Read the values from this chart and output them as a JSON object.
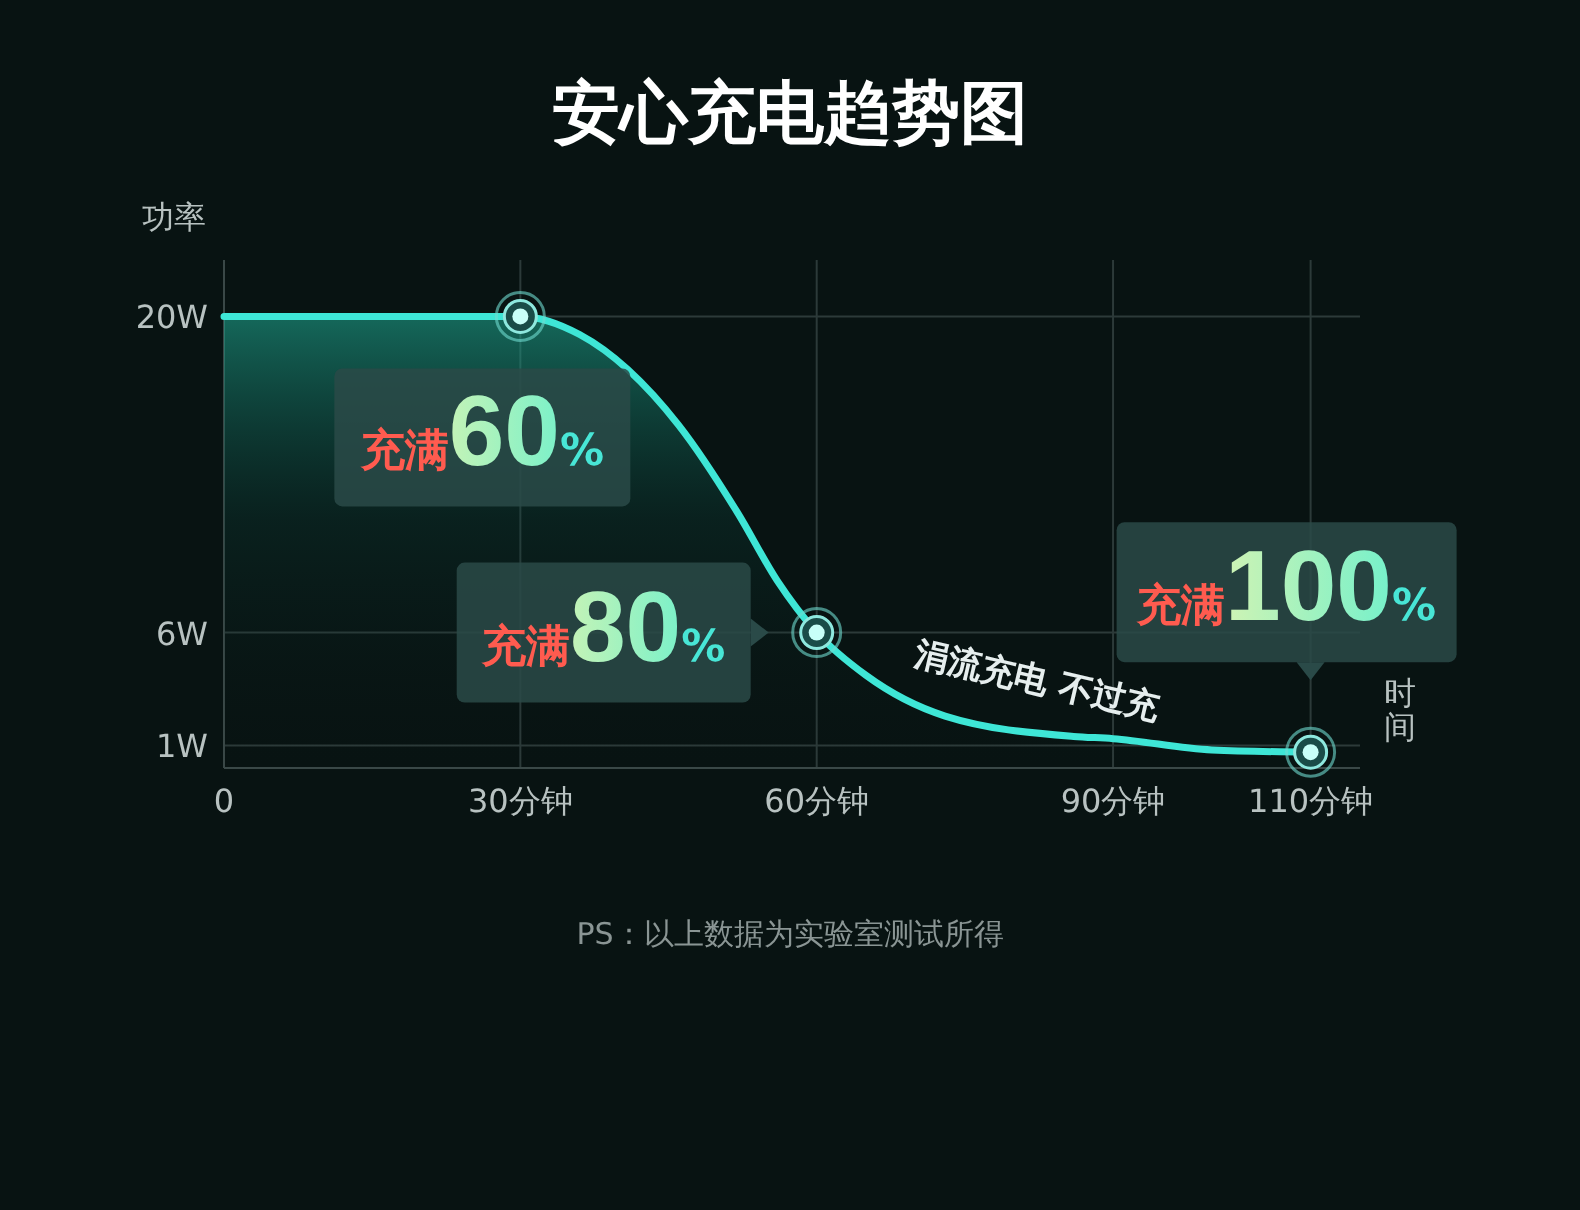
{
  "chart_data": {
    "type": "line",
    "title": "安心充电趋势图",
    "ylabel": "功率",
    "xlabel": "时间",
    "x": [
      0,
      30,
      36,
      46,
      52,
      56,
      60,
      65,
      73,
      86,
      90,
      100,
      110
    ],
    "series": [
      {
        "color": "#3ee6d6",
        "values": [
          20,
          20,
          19.2,
          15.2,
          11.3,
          8.3,
          6,
          4.1,
          2.3,
          1.4,
          1.3,
          0.8,
          0.7
        ]
      }
    ],
    "xlim": [
      0,
      115
    ],
    "xticks": [
      0,
      {
        "value": 30,
        "label": "30分钟"
      },
      {
        "value": 60,
        "label": "60分钟"
      },
      {
        "value": 90,
        "label": "90分钟"
      },
      {
        "value": 110,
        "label": "110分钟"
      }
    ],
    "ylim": [
      0,
      22.5
    ],
    "yticks": [
      {
        "value": 1,
        "label": "1W"
      },
      {
        "value": 6,
        "label": "6W"
      },
      {
        "value": 20,
        "label": "20W"
      }
    ],
    "grid": true,
    "marker": "none",
    "line_style": "solid",
    "annotations": [
      {
        "text": "充满60%",
        "x": 30,
        "y": 20
      },
      {
        "text": "充满80%",
        "x": 60,
        "y": 6
      },
      {
        "text": "充满100%",
        "x": 110,
        "y": 0.7
      },
      "涓流充电  不过充",
      "PS：以上数据为实验室测试所得"
    ]
  }
}
